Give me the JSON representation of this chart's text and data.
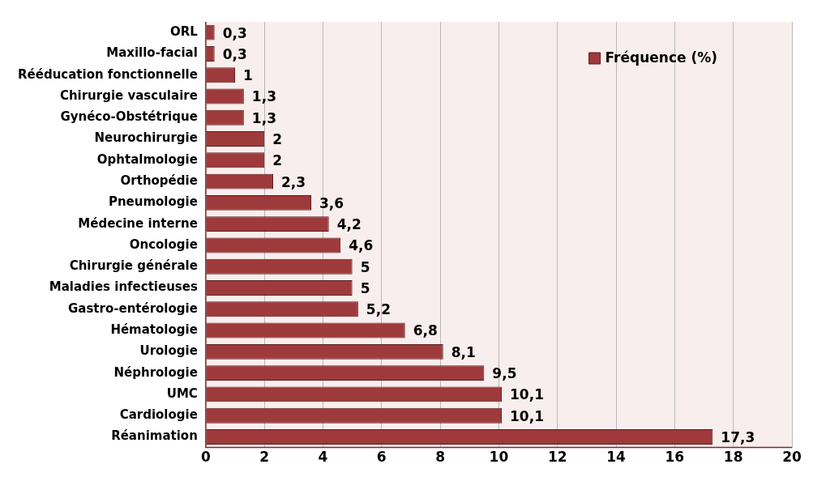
{
  "chart_data": {
    "type": "bar",
    "orientation": "horizontal",
    "categories": [
      "ORL",
      "Maxillo-facial",
      "Rééducation fonctionnelle",
      "Chirurgie vasculaire",
      "Gynéco-Obstétrique",
      "Neurochirurgie",
      "Ophtalmologie",
      "Orthopédie",
      "Pneumologie",
      "Médecine interne",
      "Oncologie",
      "Chirurgie générale",
      "Maladies infectieuses",
      "Gastro-entérologie",
      "Hématologie",
      "Urologie",
      "Néphrologie",
      "UMC",
      "Cardiologie",
      "Réanimation"
    ],
    "series": [
      {
        "name": "Fréquence (%)",
        "color": "#9e3a3b",
        "values": [
          0.3,
          0.3,
          1,
          1.3,
          1.3,
          2,
          2,
          2.3,
          3.6,
          4.2,
          4.6,
          5,
          5,
          5.2,
          6.8,
          8.1,
          9.5,
          10.1,
          10.1,
          17.3
        ],
        "value_labels": [
          "0,3",
          "0,3",
          "1",
          "1,3",
          "1,3",
          "2",
          "2",
          "2,3",
          "3,6",
          "4,2",
          "4,6",
          "5",
          "5",
          "5,2",
          "6,8",
          "8,1",
          "9,5",
          "10,1",
          "10,1",
          "17,3"
        ]
      }
    ],
    "xlim": [
      0,
      20
    ],
    "xticks": [
      0,
      2,
      4,
      6,
      8,
      10,
      12,
      14,
      16,
      18,
      20
    ],
    "grid": "x",
    "legend": "top right"
  }
}
